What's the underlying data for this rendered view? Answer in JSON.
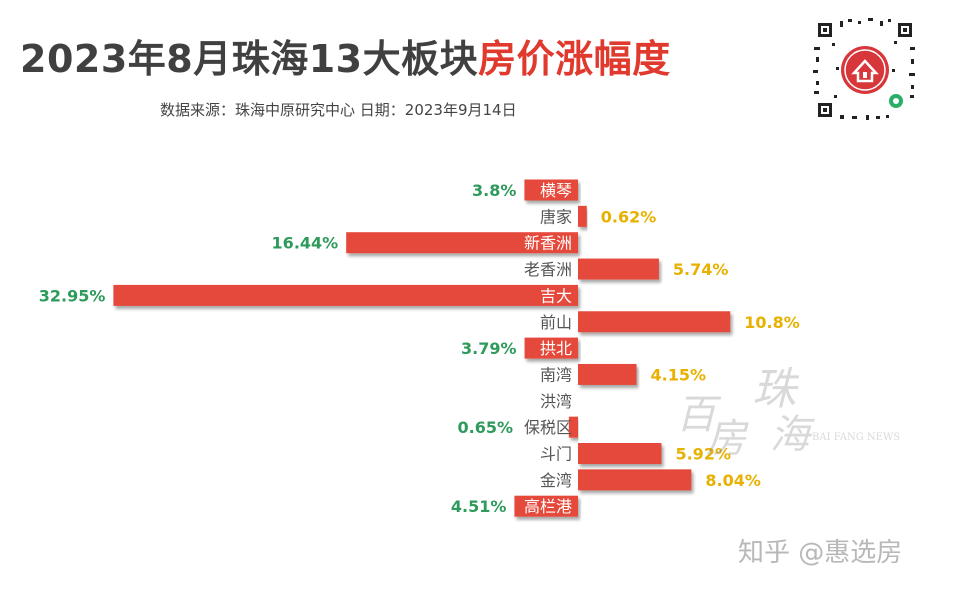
{
  "header": {
    "title_main": "2023年8月珠海13大板块",
    "title_highlight": "房价涨幅度",
    "source": "数据来源：珠海中原研究中心  日期：2023年9月14日"
  },
  "watermark": {
    "text_bottom": "知乎 @惠选房",
    "logo_text": "百房珠海",
    "logo_en": "BAI FANG NEWS"
  },
  "qr": {
    "icon": "house-logo-icon"
  },
  "colors": {
    "bar": "#e5493b",
    "down_label": "#2e9a5c",
    "up_label": "#e8b100",
    "title_highlight": "#e03a2f"
  },
  "chart_data": {
    "type": "bar",
    "orientation": "horizontal-diverging",
    "categories": [
      "横琴",
      "唐家",
      "新香洲",
      "老香洲",
      "吉大",
      "前山",
      "拱北",
      "南湾",
      "洪湾",
      "保税区",
      "斗门",
      "金湾",
      "高栏港"
    ],
    "series": [
      {
        "values": [
          -3.8,
          0.62,
          -16.44,
          5.74,
          -32.95,
          10.8,
          -3.79,
          4.15,
          0,
          -0.65,
          5.92,
          8.04,
          -4.51
        ]
      }
    ],
    "value_labels": [
      "3.8%",
      "0.62%",
      "16.44%",
      "5.74%",
      "32.95%",
      "10.8%",
      "3.79%",
      "4.15%",
      "",
      "0.65%",
      "5.92%",
      "8.04%",
      "4.51%"
    ]
  }
}
